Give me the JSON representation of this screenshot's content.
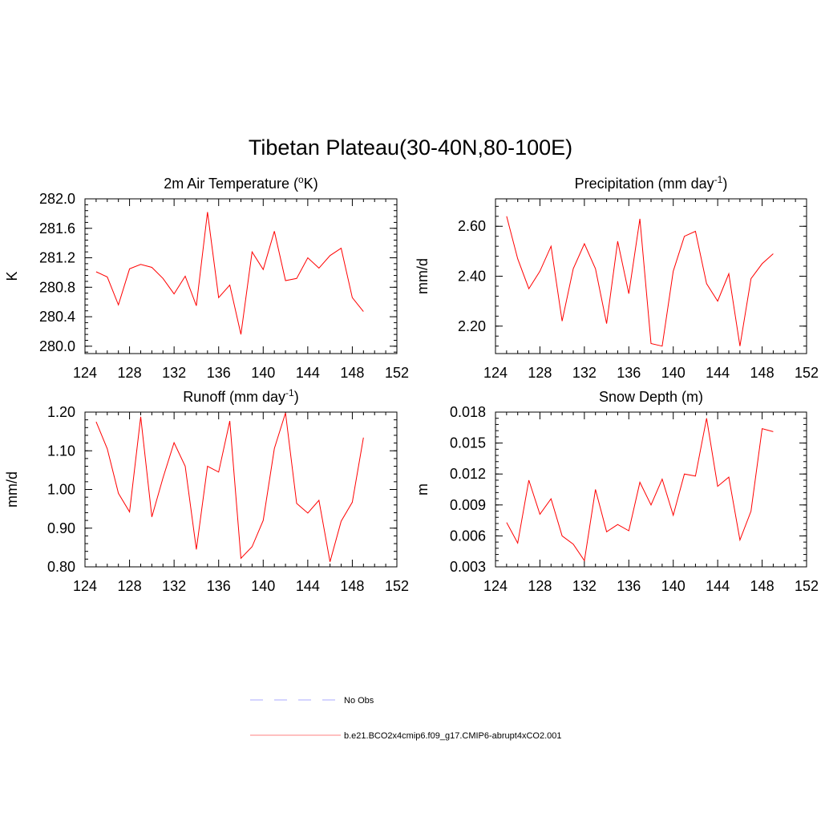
{
  "figure": {
    "title": "Tibetan Plateau(30-40N,80-100E)"
  },
  "chart_data": [
    {
      "type": "line",
      "title": "2m Air Temperature (°K)",
      "title_parts": {
        "pre": "2m Air Temperature (",
        "sup": "o",
        "post": "K)"
      },
      "ylabel": "K",
      "xlim": [
        124,
        152
      ],
      "ylim": [
        279.9,
        282.0
      ],
      "xticks": [
        124,
        128,
        132,
        136,
        140,
        144,
        148,
        152
      ],
      "yticks": [
        "280.0",
        "280.4",
        "280.8",
        "281.2",
        "281.6",
        "282.0"
      ],
      "x": [
        125,
        126,
        127,
        128,
        129,
        130,
        131,
        132,
        133,
        134,
        135,
        136,
        137,
        138,
        139,
        140,
        141,
        142,
        143,
        144,
        145,
        146,
        147,
        148,
        149
      ],
      "series": [
        {
          "values": [
            281.01,
            280.94,
            280.56,
            281.05,
            281.11,
            281.07,
            280.92,
            280.71,
            280.95,
            280.55,
            281.82,
            280.66,
            280.83,
            280.16,
            281.28,
            281.04,
            281.56,
            280.89,
            280.92,
            281.2,
            281.06,
            281.23,
            281.33,
            280.66,
            280.47
          ],
          "color": "#ff0000"
        }
      ]
    },
    {
      "type": "line",
      "title": "Precipitation (mm day-1)",
      "title_parts": {
        "pre": "Precipitation (mm day",
        "sup": "-1",
        "post": ")"
      },
      "ylabel": "mm/d",
      "xlim": [
        124,
        152
      ],
      "ylim": [
        2.09,
        2.71
      ],
      "xticks": [
        124,
        128,
        132,
        136,
        140,
        144,
        148,
        152
      ],
      "yticks": [
        "2.20",
        "2.40",
        "2.60"
      ],
      "x": [
        125,
        126,
        127,
        128,
        129,
        130,
        131,
        132,
        133,
        134,
        135,
        136,
        137,
        138,
        139,
        140,
        141,
        142,
        143,
        144,
        145,
        146,
        147,
        148,
        149
      ],
      "series": [
        {
          "values": [
            2.64,
            2.47,
            2.35,
            2.42,
            2.52,
            2.22,
            2.43,
            2.53,
            2.43,
            2.21,
            2.54,
            2.33,
            2.63,
            2.13,
            2.12,
            2.42,
            2.56,
            2.58,
            2.37,
            2.3,
            2.41,
            2.12,
            2.39,
            2.45,
            2.49
          ],
          "color": "#ff0000"
        }
      ]
    },
    {
      "type": "line",
      "title": "Runoff (mm day-1)",
      "title_parts": {
        "pre": "Runoff (mm day",
        "sup": "-1",
        "post": ")"
      },
      "ylabel": "mm/d",
      "xlim": [
        124,
        152
      ],
      "ylim": [
        0.8,
        1.2
      ],
      "xticks": [
        124,
        128,
        132,
        136,
        140,
        144,
        148,
        152
      ],
      "yticks": [
        "0.80",
        "0.90",
        "1.00",
        "1.10",
        "1.20"
      ],
      "x": [
        125,
        126,
        127,
        128,
        129,
        130,
        131,
        132,
        133,
        134,
        135,
        136,
        137,
        138,
        139,
        140,
        141,
        142,
        143,
        144,
        145,
        146,
        147,
        148,
        149
      ],
      "series": [
        {
          "values": [
            1.175,
            1.105,
            0.99,
            0.942,
            1.188,
            0.929,
            1.03,
            1.121,
            1.06,
            0.845,
            1.06,
            1.045,
            1.177,
            0.822,
            0.852,
            0.92,
            1.106,
            1.198,
            0.964,
            0.939,
            0.972,
            0.813,
            0.918,
            0.967,
            1.134
          ],
          "color": "#ff0000"
        }
      ]
    },
    {
      "type": "line",
      "title": "Snow Depth (m)",
      "title_parts": {
        "pre": "Snow Depth (m)",
        "sup": "",
        "post": ""
      },
      "ylabel": "m",
      "xlim": [
        124,
        152
      ],
      "ylim": [
        0.003,
        0.018
      ],
      "xticks": [
        124,
        128,
        132,
        136,
        140,
        144,
        148,
        152
      ],
      "yticks": [
        "0.003",
        "0.006",
        "0.009",
        "0.012",
        "0.015",
        "0.018"
      ],
      "x": [
        125,
        126,
        127,
        128,
        129,
        130,
        131,
        132,
        133,
        134,
        135,
        136,
        137,
        138,
        139,
        140,
        141,
        142,
        143,
        144,
        145,
        146,
        147,
        148,
        149
      ],
      "series": [
        {
          "values": [
            0.0073,
            0.0053,
            0.0114,
            0.0081,
            0.0096,
            0.006,
            0.0052,
            0.0036,
            0.0105,
            0.0064,
            0.0071,
            0.0065,
            0.0112,
            0.009,
            0.0115,
            0.008,
            0.012,
            0.0118,
            0.0174,
            0.0108,
            0.0117,
            0.0056,
            0.0084,
            0.0164,
            0.0161
          ],
          "color": "#ff0000"
        }
      ]
    }
  ],
  "legend": {
    "items": [
      {
        "label": "No Obs",
        "color": "#a8a8ff",
        "style": "dashed"
      },
      {
        "label": "b.e21.BCO2x4cmip6.f09_g17.CMIP6-abrupt4xCO2.001",
        "color": "#ff8080",
        "style": "solid"
      }
    ]
  }
}
